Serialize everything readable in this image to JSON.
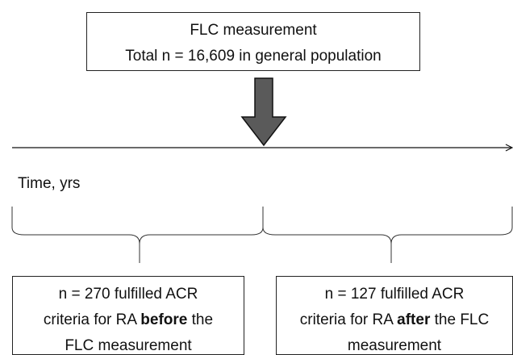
{
  "top_box": {
    "lines": [
      [
        {
          "text": "FLC measurement"
        }
      ],
      [
        {
          "text": "Total n = 16,609 in general population"
        }
      ]
    ]
  },
  "timeline": {
    "label": "Time, yrs"
  },
  "groups": [
    {
      "lines": [
        [
          {
            "text": "n = 270 fulfilled ACR"
          }
        ],
        [
          {
            "text": "criteria for RA"
          },
          {
            "text": "before",
            "bold": true
          },
          {
            "text": "the"
          }
        ],
        [
          {
            "text": "FLC measurement"
          }
        ]
      ]
    },
    {
      "lines": [
        [
          {
            "text": "n = 127 fulfilled ACR"
          }
        ],
        [
          {
            "text": "criteria for RA"
          },
          {
            "text": "after",
            "bold": true
          },
          {
            "text": "the FLC"
          }
        ],
        [
          {
            "text": "measurement"
          }
        ]
      ]
    }
  ]
}
